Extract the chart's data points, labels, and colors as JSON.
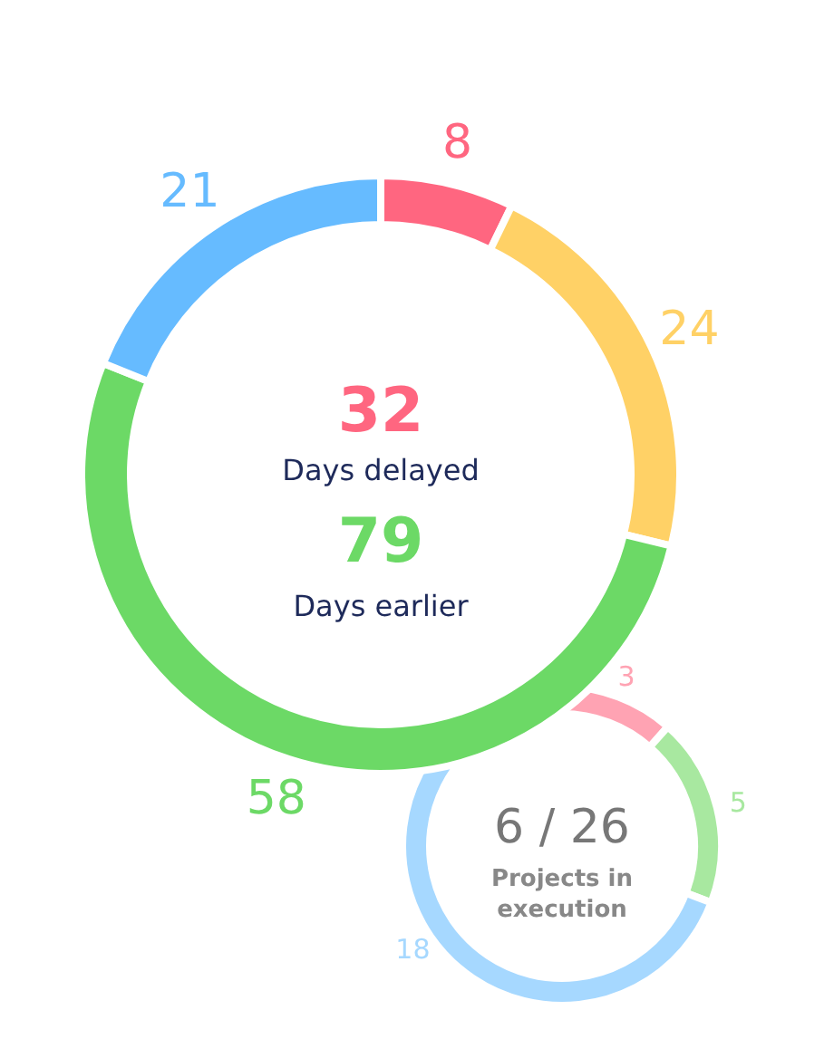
{
  "chart_data": [
    {
      "type": "donut",
      "categories": [
        null,
        null,
        null,
        null
      ],
      "values": [
        8,
        24,
        58,
        21
      ],
      "colors": [
        "#ff6680",
        "#ffd166",
        "#6cd966",
        "#66bbff"
      ],
      "data_labels": true,
      "annotations": [
        "32",
        "Days delayed",
        "79",
        "Days earlier"
      ]
    },
    {
      "type": "donut",
      "categories": [
        null,
        null,
        null
      ],
      "values": [
        3,
        5,
        18
      ],
      "colors": [
        "#ffa3b3",
        "#a8e8a0",
        "#a6d8ff"
      ],
      "data_labels": true,
      "annotations": [
        "6 / 26",
        "Projects in execution"
      ]
    }
  ]
}
